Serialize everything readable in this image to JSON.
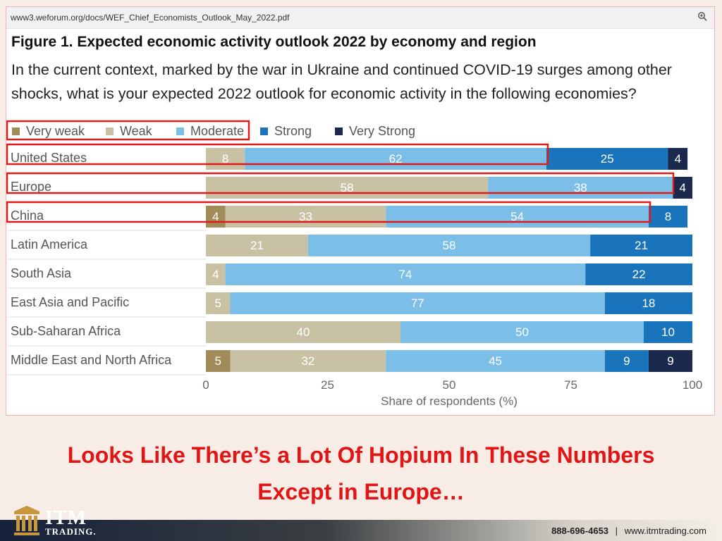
{
  "browser": {
    "url": "www3.weforum.org/docs/WEF_Chief_Economists_Outlook_May_2022.pdf"
  },
  "figure": {
    "title": "Figure 1. Expected economic activity outlook 2022 by economy and region",
    "subtitle": "In the current context, marked by the war in Ukraine and continued COVID-19 surges among other shocks, what is your expected 2022 outlook for economic activity in the following economies?"
  },
  "chart_data": {
    "type": "bar",
    "orientation": "horizontal",
    "stacked": true,
    "categories": [
      "United States",
      "Europe",
      "China",
      "Latin America",
      "South Asia",
      "East Asia and Pacific",
      "Sub-Saharan Africa",
      "Middle East and North Africa"
    ],
    "series": [
      {
        "name": "Very weak",
        "color": "#a18b58",
        "values": [
          0,
          0,
          4,
          0,
          0,
          0,
          0,
          5
        ]
      },
      {
        "name": "Weak",
        "color": "#c9c1a4",
        "values": [
          8,
          58,
          33,
          21,
          4,
          5,
          40,
          32
        ]
      },
      {
        "name": "Moderate",
        "color": "#7bbfe9",
        "values": [
          62,
          38,
          54,
          58,
          74,
          77,
          50,
          45
        ]
      },
      {
        "name": "Strong",
        "color": "#1a74bb",
        "values": [
          25,
          0,
          8,
          21,
          22,
          18,
          10,
          9
        ]
      },
      {
        "name": "Very Strong",
        "color": "#1b2a4c",
        "values": [
          4,
          4,
          0,
          0,
          0,
          0,
          0,
          9
        ]
      }
    ],
    "xlabel": "Share of respondents (%)",
    "xlim": [
      0,
      100
    ],
    "xticks": [
      0,
      25,
      50,
      75,
      100
    ],
    "legend": "top-left",
    "grid": false,
    "highlights": [
      "legend: Very weak, Weak, Moderate",
      "United States",
      "Europe",
      "China"
    ],
    "highlight_color": "#e01b1b"
  },
  "tagline": {
    "line1": "Looks Like There’s a Lot Of Hopium In These Numbers",
    "line2": "Except in Europe…"
  },
  "brand": {
    "name": "ITM",
    "sub": "TRADING."
  },
  "contact": {
    "phone": "888-696-4653",
    "separator": "|",
    "site": "www.itmtrading.com"
  }
}
